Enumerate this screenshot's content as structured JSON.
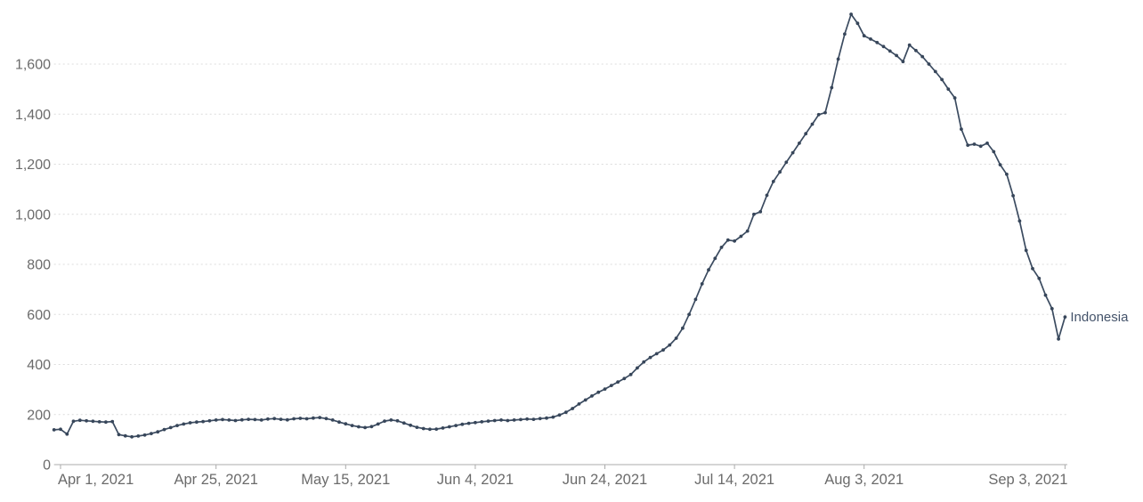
{
  "chart_data": {
    "type": "line",
    "title": "",
    "xlabel": "",
    "ylabel": "",
    "legend_position": "end-of-line-label",
    "grid": "horizontal-dashed",
    "series": [
      {
        "name": "Indonesia",
        "start_date": "2021-03-31",
        "end_date": "2021-09-03",
        "frequency": "daily",
        "values": [
          139,
          141,
          122,
          173,
          177,
          175,
          173,
          171,
          170,
          172,
          120,
          115,
          111,
          114,
          118,
          124,
          131,
          140,
          148,
          156,
          162,
          167,
          170,
          172,
          175,
          178,
          180,
          178,
          176,
          179,
          181,
          180,
          178,
          182,
          184,
          181,
          179,
          183,
          185,
          183,
          186,
          188,
          184,
          178,
          170,
          163,
          156,
          151,
          148,
          152,
          162,
          174,
          178,
          175,
          166,
          157,
          149,
          144,
          141,
          142,
          146,
          151,
          156,
          161,
          165,
          168,
          171,
          174,
          176,
          178,
          176,
          178,
          180,
          182,
          181,
          184,
          186,
          190,
          198,
          209,
          224,
          242,
          258,
          274,
          289,
          302,
          316,
          330,
          344,
          360,
          386,
          410,
          428,
          443,
          458,
          478,
          505,
          545,
          600,
          660,
          722,
          778,
          824,
          868,
          897,
          893,
          912,
          933,
          1000,
          1010,
          1076,
          1131,
          1169,
          1208,
          1246,
          1284,
          1322,
          1360,
          1398,
          1406,
          1506,
          1620,
          1720,
          1799,
          1763,
          1713,
          1700,
          1686,
          1670,
          1652,
          1634,
          1610,
          1676,
          1654,
          1630,
          1600,
          1570,
          1538,
          1500,
          1465,
          1340,
          1276,
          1280,
          1272,
          1284,
          1250,
          1198,
          1160,
          1074,
          973,
          856,
          783,
          744,
          677,
          623,
          502,
          590
        ]
      }
    ],
    "y_axis": {
      "min": 0,
      "max": 1800,
      "tick_values": [
        0,
        200,
        400,
        600,
        800,
        1000,
        1200,
        1400,
        1600
      ],
      "tick_labels": [
        "0",
        "200",
        "400",
        "600",
        "800",
        "1,000",
        "1,200",
        "1,400",
        "1,600"
      ]
    },
    "x_axis": {
      "ticks": [
        {
          "date": "2021-04-01",
          "label": "Apr 1, 2021",
          "align": "start"
        },
        {
          "date": "2021-04-25",
          "label": "Apr 25, 2021",
          "align": "middle"
        },
        {
          "date": "2021-05-15",
          "label": "May 15, 2021",
          "align": "middle"
        },
        {
          "date": "2021-06-04",
          "label": "Jun 4, 2021",
          "align": "middle"
        },
        {
          "date": "2021-06-24",
          "label": "Jun 24, 2021",
          "align": "middle"
        },
        {
          "date": "2021-07-14",
          "label": "Jul 14, 2021",
          "align": "middle"
        },
        {
          "date": "2021-08-03",
          "label": "Aug 3, 2021",
          "align": "middle"
        },
        {
          "date": "2021-09-03",
          "label": "Sep 3, 2021",
          "align": "end"
        }
      ]
    },
    "colors": {
      "line": "#3b4b60",
      "point": "#37465a",
      "series_label": "#44536a",
      "axis_text": "#6b6b6b",
      "gridline": "#dcdcdc",
      "axis_line": "#ababab"
    }
  },
  "series_end_label": "Indonesia"
}
